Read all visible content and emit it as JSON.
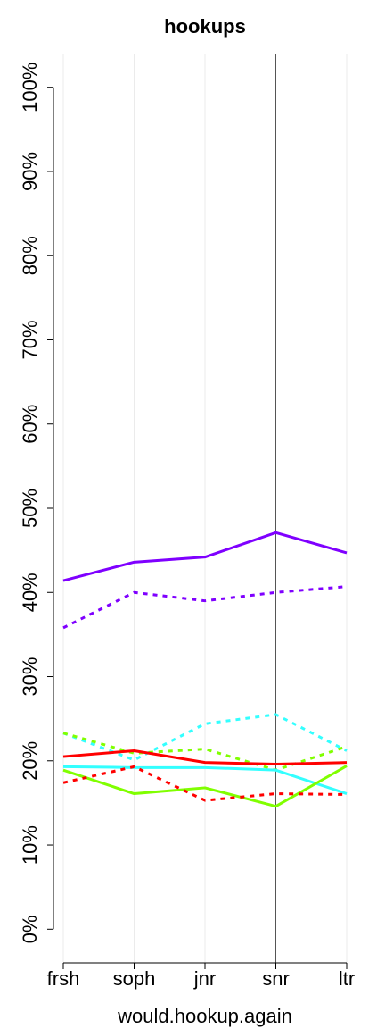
{
  "chart_data": {
    "type": "line",
    "title": "hookups",
    "x_label": "would.hookup.again",
    "categories": [
      "frsh",
      "soph",
      "jnr",
      "snr",
      "ltr"
    ],
    "ylim": [
      -4,
      104
    ],
    "yticks": [
      {
        "value": 0,
        "label": "0%"
      },
      {
        "value": 10,
        "label": "10%"
      },
      {
        "value": 20,
        "label": "20%"
      },
      {
        "value": 30,
        "label": "30%"
      },
      {
        "value": 40,
        "label": "40%"
      },
      {
        "value": 50,
        "label": "50%"
      },
      {
        "value": 60,
        "label": "60%"
      },
      {
        "value": 70,
        "label": "70%"
      },
      {
        "value": 80,
        "label": "80%"
      },
      {
        "value": 90,
        "label": "90%"
      },
      {
        "value": 100,
        "label": "100%"
      }
    ],
    "grid": "x",
    "vline": "snr",
    "series": [
      {
        "color": "#7f00ff",
        "linestyle": "solid",
        "values": [
          41.4,
          43.6,
          44.2,
          47.1,
          44.7
        ]
      },
      {
        "color": "#7f00ff",
        "linestyle": "dashed",
        "values": [
          35.8,
          40.0,
          39.0,
          40.0,
          40.7
        ]
      },
      {
        "color": "#33ffff",
        "linestyle": "dashed",
        "values": [
          23.3,
          20.1,
          24.4,
          25.5,
          21.2
        ]
      },
      {
        "color": "#80ff00",
        "linestyle": "dashed",
        "values": [
          23.3,
          20.9,
          21.4,
          18.9,
          21.7
        ]
      },
      {
        "color": "#ff0000",
        "linestyle": "solid",
        "values": [
          20.5,
          21.2,
          19.8,
          19.6,
          19.8
        ]
      },
      {
        "color": "#33ffff",
        "linestyle": "solid",
        "values": [
          19.3,
          19.2,
          19.2,
          18.9,
          16.1
        ]
      },
      {
        "color": "#80ff00",
        "linestyle": "solid",
        "values": [
          18.9,
          16.1,
          16.8,
          14.6,
          19.4
        ]
      },
      {
        "color": "#ff0000",
        "linestyle": "dashed",
        "values": [
          17.4,
          19.3,
          15.3,
          16.1,
          16.0
        ]
      }
    ]
  }
}
